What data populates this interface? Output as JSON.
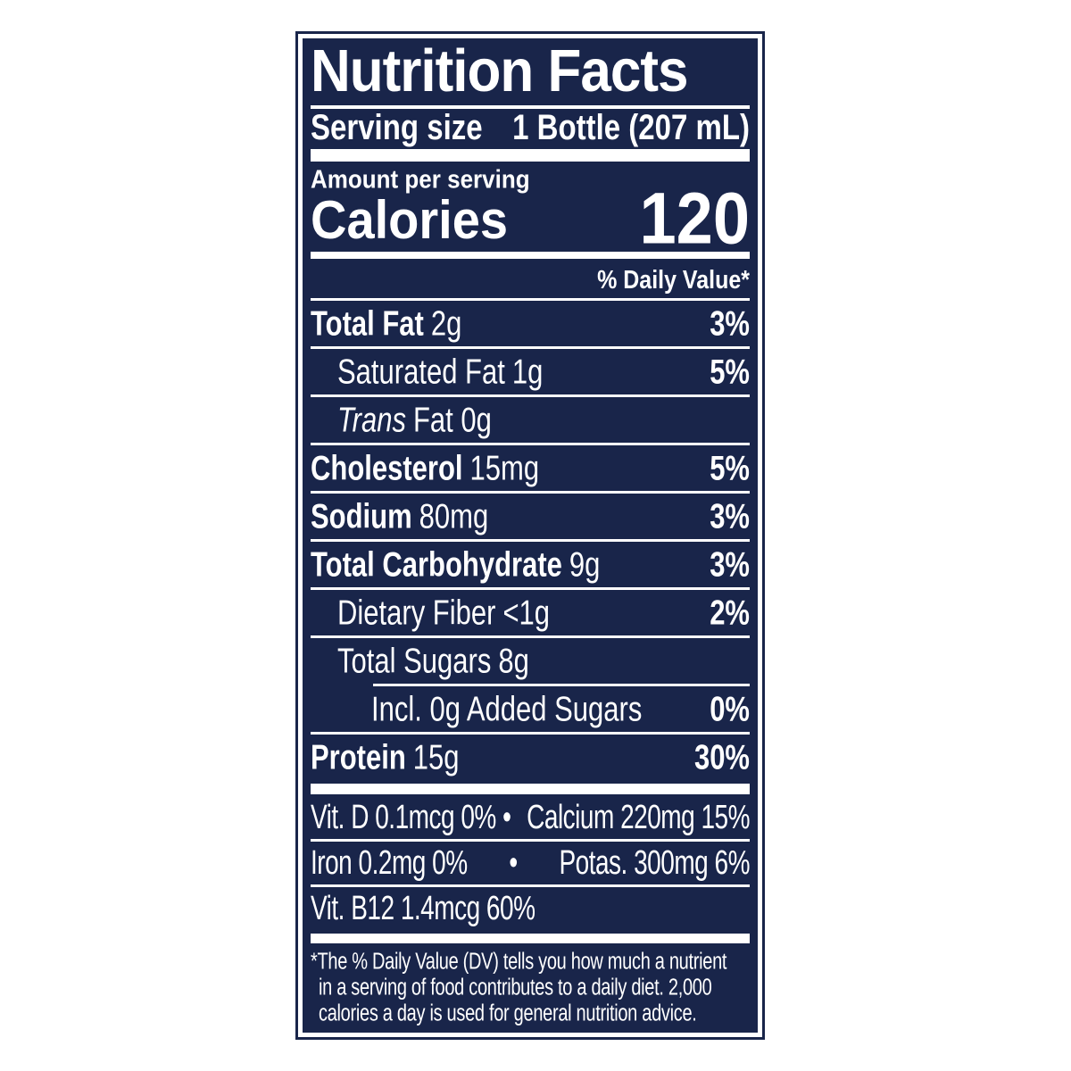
{
  "label": {
    "title": "Nutrition Facts",
    "serving_size_label": "Serving size",
    "serving_size_value": "1 Bottle (207 mL)",
    "amount_per_serving": "Amount per serving",
    "calories_label": "Calories",
    "calories_value": "120",
    "daily_value_header": "% Daily Value*",
    "colors": {
      "background_navy": "#19254a",
      "text_white": "#ffffff"
    },
    "nutrients": [
      {
        "name": "Total Fat",
        "amount": "2g",
        "dv": "3%"
      },
      {
        "name": "Saturated Fat",
        "amount": "1g",
        "dv": "5%"
      },
      {
        "name": "Trans",
        "amount": "Fat 0g",
        "dv": ""
      },
      {
        "name": "Cholesterol",
        "amount": "15mg",
        "dv": "5%"
      },
      {
        "name": "Sodium",
        "amount": "80mg",
        "dv": "3%"
      },
      {
        "name": "Total Carbohydrate",
        "amount": "9g",
        "dv": "3%"
      },
      {
        "name": "Dietary Fiber",
        "amount": "<1g",
        "dv": "2%"
      },
      {
        "name": "Total Sugars",
        "amount": "8g",
        "dv": ""
      },
      {
        "name": "Incl. 0g Added Sugars",
        "amount": "",
        "dv": "0%"
      },
      {
        "name": "Protein",
        "amount": "15g",
        "dv": "30%"
      }
    ],
    "micronutrients": [
      {
        "left": "Vit. D 0.1mcg 0% •",
        "bullet": "",
        "right": "Calcium 220mg 15%"
      },
      {
        "left": "Iron 0.2mg 0%",
        "bullet": "•",
        "right": "Potas. 300mg 6%"
      },
      {
        "left": "Vit. B12 1.4mcg 60%"
      }
    ],
    "footnote_lines": [
      "*The % Daily Value (DV) tells you how much a nutrient",
      "in a serving of food contributes to a daily diet. 2,000",
      "calories a day is used for general nutrition advice."
    ]
  }
}
